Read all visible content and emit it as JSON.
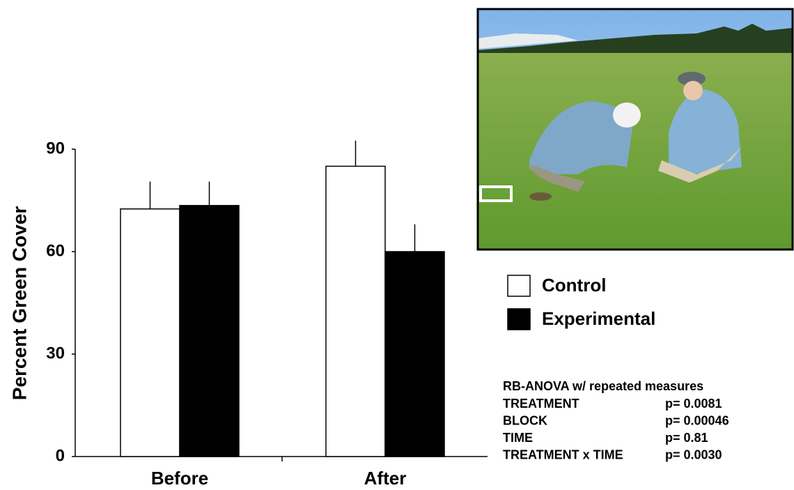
{
  "chart_data": {
    "type": "bar",
    "y_label": "Percent Green Cover",
    "categories": [
      "Before",
      "After"
    ],
    "series": [
      {
        "name": "Control",
        "color": "#ffffff",
        "values": [
          72.5,
          85
        ],
        "errors": [
          8,
          7.5
        ]
      },
      {
        "name": "Experimental",
        "color": "#000000",
        "values": [
          73.5,
          60
        ],
        "errors": [
          7,
          8
        ]
      }
    ],
    "ylim": [
      0,
      90
    ],
    "yticks": [
      0,
      30,
      60,
      90
    ],
    "stats": {
      "title": "RB-ANOVA w/ repeated measures",
      "rows": [
        [
          "TREATMENT",
          "p= 0.0081"
        ],
        [
          "BLOCK",
          "p= 0.00046"
        ],
        [
          "TIME",
          "p= 0.81"
        ],
        [
          "TREATMENT x TIME",
          "p= 0.0030"
        ]
      ]
    }
  }
}
